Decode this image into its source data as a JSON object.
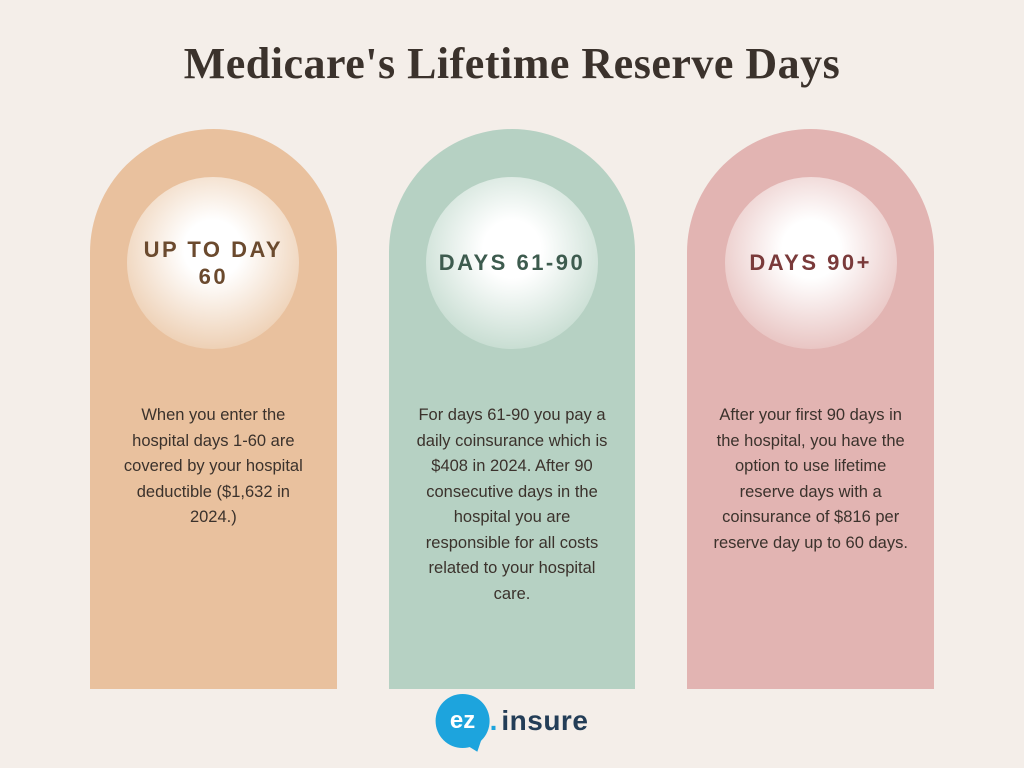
{
  "title": "Medicare's Lifetime Reserve Days",
  "title_fontsize": 44,
  "background_color": "#f4eee9",
  "title_color": "#3b322c",
  "body_text_color": "#3b322c",
  "body_fontsize": 16.5,
  "columns": [
    {
      "heading": "UP TO DAY 60",
      "body": "When you enter the hospital days 1-60 are covered by your hospital deductible ($1,632 in 2024.)",
      "fill": "#e9c19e",
      "orb_gradient_inner": "#ffffff",
      "orb_gradient_outer": "#eed1b6",
      "label_color": "#6b4a2e",
      "label_fontsize": 22
    },
    {
      "heading": "DAYS 61-90",
      "body": "For days 61-90 you pay a daily coinsurance which is $408 in 2024. After 90 consecutive days in the hospital you are responsible for all costs related to your hospital care.",
      "fill": "#b6d1c3",
      "orb_gradient_inner": "#ffffff",
      "orb_gradient_outer": "#c9ded3",
      "label_color": "#3d5b4e",
      "label_fontsize": 22
    },
    {
      "heading": "DAYS 90+",
      "body": "After your first 90 days in the hospital, you have the option to use lifetime reserve days with a coinsurance of $816 per reserve day up to 60 days.",
      "fill": "#e2b4b2",
      "orb_gradient_inner": "#ffffff",
      "orb_gradient_outer": "#e9c6c4",
      "label_color": "#7a3a3a",
      "label_fontsize": 22
    }
  ],
  "logo": {
    "bubble_text": "ez",
    "bubble_color": "#1da4dd",
    "text": "insure",
    "text_color": "#233d57",
    "dot": ".",
    "fontsize": 28
  }
}
